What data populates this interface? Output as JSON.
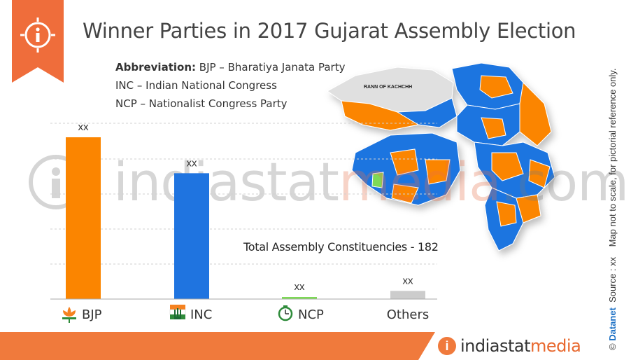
{
  "header": {
    "title": "Winner Parties in 2017 Gujarat Assembly Election",
    "info_icon": "info-icon"
  },
  "abbreviations": {
    "heading": "Abbreviation:",
    "bjp": "BJP – Bharatiya Janata Party",
    "inc": "INC – Indian National Congress",
    "ncp": "NCP – Nationalist Congress Party"
  },
  "chart_data": {
    "type": "bar",
    "categories": [
      "BJP",
      "INC",
      "NCP",
      "Others"
    ],
    "values": [
      99,
      77,
      1,
      5
    ],
    "data_labels": [
      "xx",
      "xx",
      "xx",
      "xx"
    ],
    "colors": [
      "#fb8500",
      "#1f74e0",
      "#7ed957",
      "#cccccc"
    ],
    "icons": [
      "lotus-icon",
      "hand-icon",
      "clock-icon",
      ""
    ],
    "grid": true,
    "gridline_style": "dashed",
    "ylim": [
      0,
      120
    ]
  },
  "map": {
    "label": "RANN OF KACHCHH",
    "colors": {
      "bjp": "#fb8500",
      "inc": "#1f74e0",
      "ncp": "#7ed957",
      "other": "#d9d9d9"
    }
  },
  "note": {
    "total": "Total Assembly Constituencies - 182"
  },
  "watermark": {
    "text_a": "indiastat",
    "text_b": "media",
    "text_c": ".com"
  },
  "side_text": {
    "copyright": "©",
    "brand": "Datanet",
    "source": "Source : xx",
    "disclaimer": "Map not to scale, for pictorial reference only."
  },
  "footer": {
    "logo_i": "i",
    "logo_a": "indiastat",
    "logo_b": "media"
  }
}
